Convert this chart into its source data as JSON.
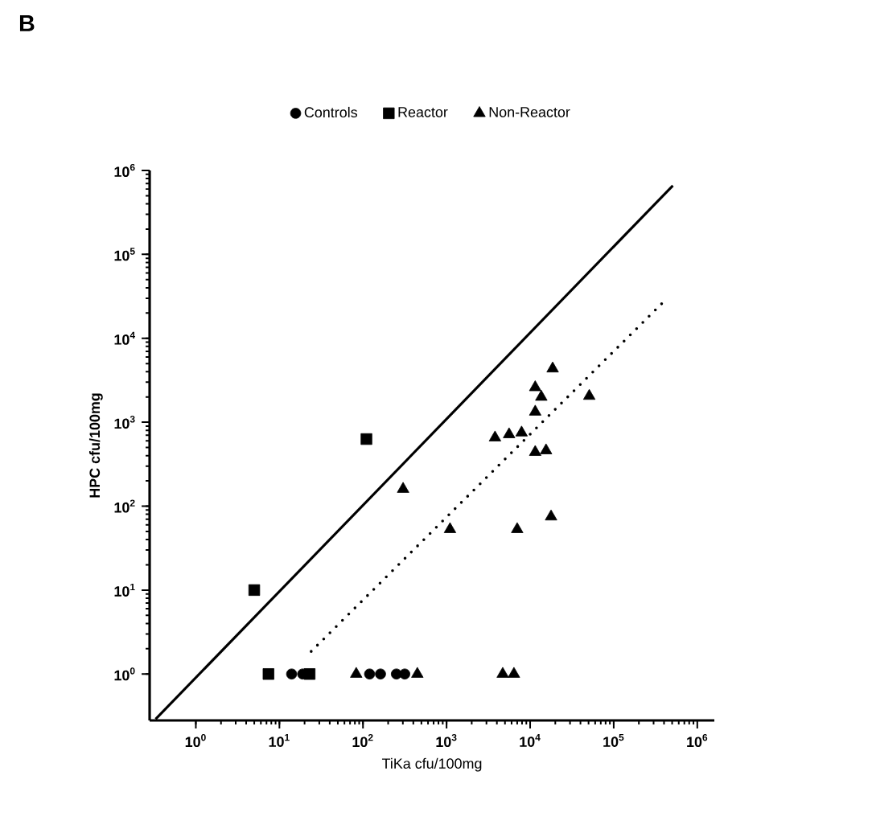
{
  "chart_data": {
    "type": "scatter",
    "title": "B",
    "xlabel": "TiKa cfu/100mg",
    "ylabel": "HPC cfu/100mg",
    "log": "xy",
    "xlim": [
      0.28,
      1600000
    ],
    "ylim": [
      0.28,
      1000000
    ],
    "xticks": [
      {
        "value": 1,
        "label": "10$^{0}$"
      },
      {
        "value": 10,
        "label": "10$^{1}$"
      },
      {
        "value": 100,
        "label": "10$^{2}$"
      },
      {
        "value": 1000,
        "label": "10$^{3}$"
      },
      {
        "value": 10000,
        "label": "10$^{4}$"
      },
      {
        "value": 100000,
        "label": "10$^{5}$"
      },
      {
        "value": 1000000,
        "label": "10$^{6}$"
      }
    ],
    "yticks": [
      {
        "value": 1,
        "label": "10$^{0}$"
      },
      {
        "value": 10,
        "label": "10$^{1}$"
      },
      {
        "value": 100,
        "label": "10$^{2}$"
      },
      {
        "value": 1000,
        "label": "10$^{3}$"
      },
      {
        "value": 10000,
        "label": "10$^{4}$"
      },
      {
        "value": 100000,
        "label": "10$^{5}$"
      },
      {
        "value": 1000000,
        "label": "10$^{6}$"
      }
    ],
    "legend": "top",
    "grid": false,
    "series": [
      {
        "name": "Controls",
        "color": "#000000",
        "marker": "circle",
        "x": [
          14,
          19,
          120,
          162,
          251,
          316
        ],
        "values": [
          1,
          1,
          1,
          1,
          1,
          1
        ]
      },
      {
        "name": "Reactor",
        "color": "#000000",
        "marker": "square",
        "x": [
          5,
          7.4,
          23,
          110
        ],
        "values": [
          10,
          1,
          1,
          630
        ]
      },
      {
        "name": "Non-Reactor",
        "color": "#000000",
        "marker": "triangle",
        "x": [
          83,
          447,
          4700,
          6400,
          302,
          1100,
          7000,
          17800,
          3800,
          5600,
          7900,
          11500,
          15500,
          11500,
          13600,
          11500,
          18600,
          51000
        ],
        "values": [
          1,
          1,
          1,
          1,
          160,
          53,
          53,
          75,
          655,
          715,
          750,
          440,
          460,
          2600,
          2000,
          1330,
          4350,
          2050
        ]
      },
      {
        "type": "line",
        "line_style": "solid",
        "color": "#000000",
        "x": [
          0.33,
          510000
        ],
        "values": [
          0.29,
          660000
        ]
      },
      {
        "type": "line",
        "line_style": "dotted",
        "color": "#000000",
        "x": [
          24,
          400000
        ],
        "values": [
          1.86,
          27500
        ]
      }
    ]
  }
}
